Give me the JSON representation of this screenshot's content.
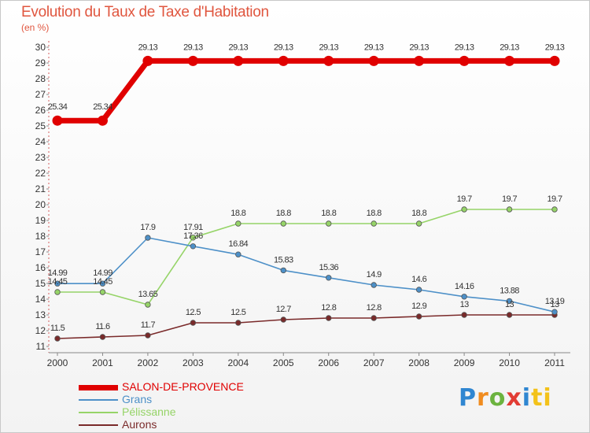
{
  "header": {
    "title": "Evolution du Taux de Taxe d'Habitation",
    "unit_label": "(en %)"
  },
  "logo": {
    "text": "Proxiti",
    "letters": [
      "P",
      "r",
      "o",
      "x",
      "i",
      "ti"
    ]
  },
  "chart_data": {
    "type": "line",
    "title": "Evolution du Taux de Taxe d'Habitation",
    "ylabel": "(en %)",
    "xlabel": "",
    "x": [
      "2000",
      "2001",
      "2002",
      "2003",
      "2004",
      "2005",
      "2006",
      "2007",
      "2008",
      "2009",
      "2010",
      "2011"
    ],
    "ylim": [
      11,
      30
    ],
    "y_ticks": [
      11,
      12,
      13,
      14,
      15,
      16,
      17,
      18,
      19,
      20,
      21,
      22,
      23,
      24,
      25,
      26,
      27,
      28,
      29,
      30
    ],
    "grid": false,
    "legend_position": "bottom-left",
    "series": [
      {
        "name": "SALON-DE-PROVENCE",
        "color": "#e00000",
        "values": [
          25.34,
          25.34,
          29.13,
          29.13,
          29.13,
          29.13,
          29.13,
          29.13,
          29.13,
          29.13,
          29.13,
          29.13
        ],
        "labels": [
          "25.34",
          "25.34",
          "29.13",
          "29.13",
          "29.13",
          "29.13",
          "29.13",
          "29.13",
          "29.13",
          "29.13",
          "29.13",
          "29.13"
        ]
      },
      {
        "name": "Grans",
        "color": "#4d90c8",
        "values": [
          14.99,
          14.99,
          17.9,
          17.36,
          16.84,
          15.83,
          15.36,
          14.9,
          14.6,
          14.16,
          13.88,
          13.19
        ],
        "labels": [
          "14.99",
          "14.99",
          "17.9",
          "17.36",
          "16.84",
          "15.83",
          "15.36",
          "14.9",
          "14.6",
          "14.16",
          "13.88",
          "13.19"
        ]
      },
      {
        "name": "Pélissanne",
        "color": "#96d468",
        "values": [
          14.45,
          14.45,
          13.65,
          17.91,
          18.8,
          18.8,
          18.8,
          18.8,
          18.8,
          19.7,
          19.7,
          19.7
        ],
        "labels": [
          "14.45",
          "14.45",
          "13.65",
          "17.91",
          "18.8",
          "18.8",
          "18.8",
          "18.8",
          "18.8",
          "19.7",
          "19.7",
          "19.7"
        ]
      },
      {
        "name": "Aurons",
        "color": "#7a2a2a",
        "values": [
          11.5,
          11.6,
          11.7,
          12.5,
          12.5,
          12.7,
          12.8,
          12.8,
          12.9,
          13,
          13,
          13
        ],
        "labels": [
          "11.5",
          "11.6",
          "11.7",
          "12.5",
          "12.5",
          "12.7",
          "12.8",
          "12.8",
          "12.9",
          "13",
          "13",
          "13"
        ]
      }
    ]
  }
}
